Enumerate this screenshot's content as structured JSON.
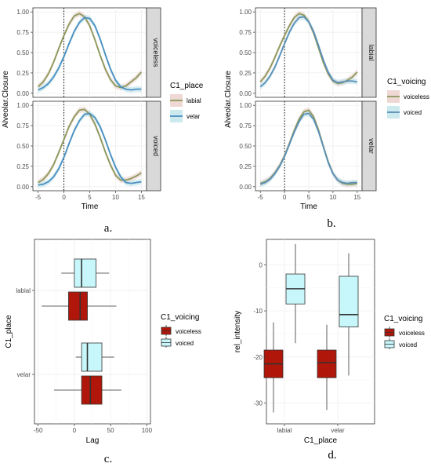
{
  "captions": {
    "a": "a.",
    "b": "b.",
    "c": "c.",
    "d": "d."
  },
  "colors": {
    "labial_line": "#8a9a5b",
    "labial_band": "#e8c6c2",
    "velar_line": "#4a8fc0",
    "velar_band": "#b6dfe6",
    "voiceless_line": "#8a9a5b",
    "voiceless_band": "#e8c6c2",
    "voiced_line": "#5a8fb8",
    "voiced_band": "#b6dfe6",
    "voiceless_fill": "#b0170a",
    "voiced_fill": "#c8f7fb",
    "strip_bg": "#d9d9d9"
  },
  "chart_data": [
    {
      "id": "a",
      "type": "line",
      "title": "",
      "xlabel": "Time",
      "ylabel": "Alveolar.Closure",
      "xlim": [
        -6,
        16
      ],
      "ylim": [
        -0.05,
        1.05
      ],
      "xticks": [
        -5,
        0,
        5,
        10,
        15
      ],
      "yticks": [
        0.0,
        0.25,
        0.5,
        0.75,
        1.0
      ],
      "vline": 0,
      "grid": true,
      "legend": {
        "title": "C1_place",
        "entries": [
          "labial",
          "velar"
        ],
        "position": "right"
      },
      "facets": [
        {
          "label": "voiceless",
          "x": [
            -5,
            -4,
            -3,
            -2,
            -1,
            0,
            1,
            2,
            3,
            4,
            5,
            6,
            7,
            8,
            9,
            10,
            11,
            12,
            13,
            14,
            15
          ],
          "series": [
            {
              "name": "labial",
              "values": [
                0.08,
                0.14,
                0.24,
                0.38,
                0.55,
                0.71,
                0.85,
                0.95,
                0.98,
                0.94,
                0.83,
                0.66,
                0.47,
                0.3,
                0.17,
                0.09,
                0.07,
                0.09,
                0.14,
                0.19,
                0.26
              ]
            },
            {
              "name": "velar",
              "values": [
                0.04,
                0.07,
                0.12,
                0.2,
                0.31,
                0.45,
                0.61,
                0.76,
                0.87,
                0.93,
                0.92,
                0.83,
                0.67,
                0.48,
                0.3,
                0.16,
                0.08,
                0.05,
                0.04,
                0.05,
                0.05
              ]
            }
          ]
        },
        {
          "label": "voiced",
          "x": [
            -5,
            -4,
            -3,
            -2,
            -1,
            0,
            1,
            2,
            3,
            4,
            5,
            6,
            7,
            8,
            9,
            10,
            11,
            12,
            13,
            14,
            15
          ],
          "series": [
            {
              "name": "labial",
              "values": [
                0.05,
                0.09,
                0.16,
                0.27,
                0.42,
                0.58,
                0.74,
                0.86,
                0.94,
                0.95,
                0.89,
                0.77,
                0.61,
                0.43,
                0.27,
                0.14,
                0.08,
                0.08,
                0.1,
                0.13,
                0.17
              ]
            },
            {
              "name": "velar",
              "values": [
                0.02,
                0.03,
                0.06,
                0.12,
                0.22,
                0.36,
                0.53,
                0.69,
                0.81,
                0.89,
                0.9,
                0.85,
                0.74,
                0.58,
                0.4,
                0.24,
                0.12,
                0.05,
                0.04,
                0.05,
                0.06
              ]
            }
          ]
        }
      ]
    },
    {
      "id": "b",
      "type": "line",
      "title": "",
      "xlabel": "Time",
      "ylabel": "Alveolar.Closure",
      "xlim": [
        -6,
        16
      ],
      "ylim": [
        -0.05,
        1.05
      ],
      "xticks": [
        -5,
        0,
        5,
        10,
        15
      ],
      "yticks": [
        0.0,
        0.25,
        0.5,
        0.75,
        1.0
      ],
      "vline": 0,
      "grid": true,
      "legend": {
        "title": "C1_voicing",
        "entries": [
          "voiceless",
          "voiced"
        ],
        "position": "right"
      },
      "facets": [
        {
          "label": "labial",
          "x": [
            -5,
            -4,
            -3,
            -2,
            -1,
            0,
            1,
            2,
            3,
            4,
            5,
            6,
            7,
            8,
            9,
            10,
            11,
            12,
            13,
            14,
            15
          ],
          "series": [
            {
              "name": "voiceless",
              "values": [
                0.14,
                0.21,
                0.31,
                0.44,
                0.58,
                0.71,
                0.83,
                0.93,
                0.98,
                0.96,
                0.88,
                0.74,
                0.56,
                0.38,
                0.24,
                0.15,
                0.12,
                0.13,
                0.16,
                0.2,
                0.26
              ]
            },
            {
              "name": "voiced",
              "values": [
                0.08,
                0.13,
                0.21,
                0.32,
                0.46,
                0.61,
                0.75,
                0.86,
                0.93,
                0.94,
                0.88,
                0.76,
                0.59,
                0.41,
                0.26,
                0.16,
                0.13,
                0.14,
                0.15,
                0.15,
                0.14
              ]
            }
          ]
        },
        {
          "label": "velar",
          "x": [
            -5,
            -4,
            -3,
            -2,
            -1,
            0,
            1,
            2,
            3,
            4,
            5,
            6,
            7,
            8,
            9,
            10,
            11,
            12,
            13,
            14,
            15
          ],
          "series": [
            {
              "name": "voiceless",
              "values": [
                0.04,
                0.06,
                0.1,
                0.17,
                0.26,
                0.38,
                0.53,
                0.69,
                0.83,
                0.92,
                0.94,
                0.86,
                0.7,
                0.5,
                0.31,
                0.16,
                0.08,
                0.04,
                0.03,
                0.03,
                0.04
              ]
            },
            {
              "name": "voiced",
              "values": [
                0.03,
                0.05,
                0.09,
                0.16,
                0.25,
                0.37,
                0.52,
                0.67,
                0.8,
                0.89,
                0.9,
                0.83,
                0.68,
                0.49,
                0.3,
                0.16,
                0.08,
                0.05,
                0.04,
                0.05,
                0.05
              ]
            }
          ]
        }
      ]
    },
    {
      "id": "c",
      "type": "box",
      "orientation": "horizontal",
      "title": "",
      "xlabel": "Lag",
      "ylabel": "C1_place",
      "xlim": [
        -55,
        105
      ],
      "xticks": [
        -50,
        0,
        50,
        100
      ],
      "categories": [
        "labial",
        "velar"
      ],
      "grid": true,
      "legend": {
        "title": "C1_voicing",
        "entries": [
          "voiceless",
          "voiced"
        ],
        "position": "right"
      },
      "boxes": [
        {
          "category": "labial",
          "group": "voiced",
          "whisker_low": -18,
          "q1": 0,
          "median": 10,
          "q3": 30,
          "whisker_high": 48
        },
        {
          "category": "labial",
          "group": "voiceless",
          "whisker_low": -45,
          "q1": -8,
          "median": 8,
          "q3": 18,
          "whisker_high": 58
        },
        {
          "category": "velar",
          "group": "voiced",
          "whisker_low": 2,
          "q1": 10,
          "median": 18,
          "q3": 38,
          "whisker_high": 55
        },
        {
          "category": "velar",
          "group": "voiceless",
          "whisker_low": -28,
          "q1": 10,
          "median": 22,
          "q3": 38,
          "whisker_high": 65
        }
      ]
    },
    {
      "id": "d",
      "type": "box",
      "orientation": "vertical",
      "title": "",
      "xlabel": "C1_place",
      "ylabel": "rel_intensity",
      "ylim": [
        -34.5,
        5.5
      ],
      "yticks": [
        0,
        -10,
        -20,
        -30
      ],
      "categories": [
        "labial",
        "velar"
      ],
      "grid": true,
      "legend": {
        "title": "C1_voicing",
        "entries": [
          "voiceless",
          "voiced"
        ],
        "position": "right"
      },
      "boxes": [
        {
          "category": "labial",
          "group": "voiceless",
          "whisker_low": -32,
          "q1": -24.5,
          "median": -21.5,
          "q3": -18.5,
          "whisker_high": -12.5
        },
        {
          "category": "labial",
          "group": "voiced",
          "whisker_low": -17,
          "q1": -8.5,
          "median": -5.2,
          "q3": -2,
          "whisker_high": 4.5
        },
        {
          "category": "velar",
          "group": "voiceless",
          "whisker_low": -31.5,
          "q1": -24.5,
          "median": -21.2,
          "q3": -18.5,
          "whisker_high": -13
        },
        {
          "category": "velar",
          "group": "voiced",
          "whisker_low": -24,
          "q1": -13.5,
          "median": -10.8,
          "q3": -2.5,
          "whisker_high": 2.5
        }
      ]
    }
  ]
}
